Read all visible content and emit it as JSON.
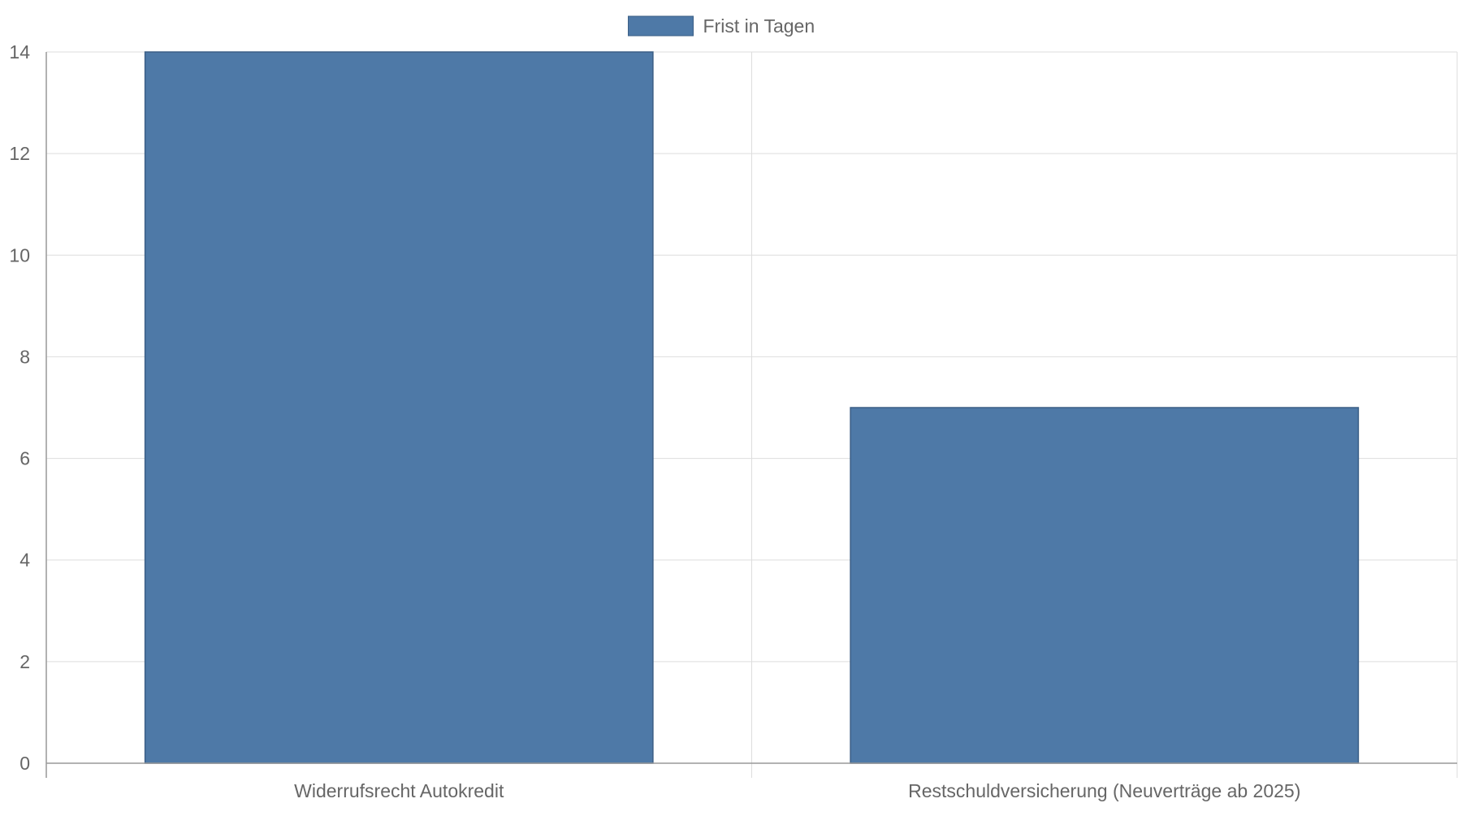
{
  "chart_data": {
    "type": "bar",
    "categories": [
      "Widerrufsrecht Autokredit",
      "Restschuldversicherung (Neuverträge ab 2025)"
    ],
    "series": [
      {
        "name": "Frist in Tagen",
        "values": [
          14,
          7
        ]
      }
    ],
    "title": "",
    "xlabel": "",
    "ylabel": "",
    "ylim": [
      0,
      14
    ],
    "yticks": [
      0,
      2,
      4,
      6,
      8,
      10,
      12,
      14
    ],
    "grid": true,
    "legend": "top-center",
    "colors": {
      "bar_fill": "#4e79a7",
      "bar_stroke": "#3b5f86",
      "grid": "#dddddd",
      "axis": "#999999",
      "text": "#666666"
    }
  }
}
